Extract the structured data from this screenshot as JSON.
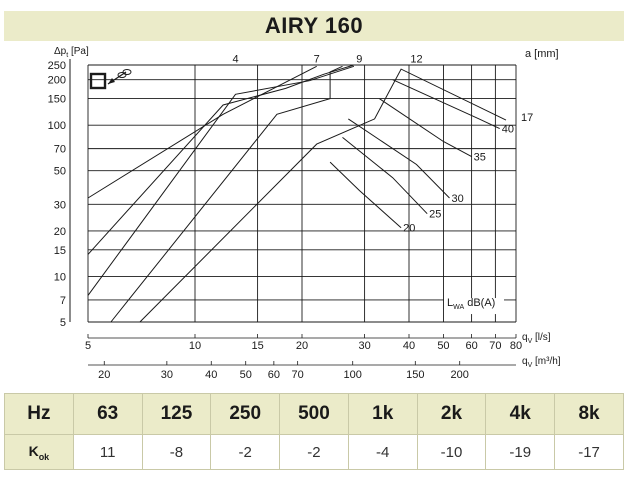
{
  "page_title": "AIRY 160",
  "chart_data": {
    "type": "line",
    "title": "AIRY 160",
    "ylabel": "Δpt [Pa]",
    "ylabel_sub": "t",
    "y_unit": "[Pa]",
    "y_scale": "log",
    "ylim": [
      5,
      250
    ],
    "y_ticks": [
      5,
      7,
      10,
      15,
      20,
      30,
      50,
      70,
      100,
      150,
      200,
      250
    ],
    "x_scale": "log",
    "xlim": [
      5,
      80
    ],
    "x_axis_ls": {
      "label_main": "q",
      "label_sub": "V",
      "unit": "[l/s]",
      "ticks": [
        5,
        10,
        15,
        20,
        30,
        40,
        50,
        60,
        70,
        80
      ]
    },
    "x_axis_m3h": {
      "label_main": "q",
      "label_sub": "V",
      "unit": "[m³/h]",
      "ticks": [
        20,
        30,
        40,
        50,
        60,
        70,
        100,
        150,
        200
      ]
    },
    "damper_axis_label": "a [mm]",
    "damper_curves": [
      {
        "name": "4",
        "label_pos": [
          13,
          260
        ],
        "points": [
          [
            5,
            33
          ],
          [
            12,
            118
          ],
          [
            22,
            245
          ]
        ]
      },
      {
        "name": "7",
        "label_pos": [
          22,
          260
        ],
        "points": [
          [
            5,
            14
          ],
          [
            12,
            136
          ],
          [
            18,
            175
          ],
          [
            23,
            217
          ],
          [
            28,
            250
          ]
        ]
      },
      {
        "name": "9",
        "label_pos": [
          29,
          260
        ],
        "points": [
          [
            5,
            7.5
          ],
          [
            13,
            160
          ],
          [
            21,
            197
          ],
          [
            28,
            245
          ]
        ]
      },
      {
        "name": "12",
        "label_pos": [
          42,
          260
        ],
        "points": [
          [
            5.8,
            5
          ],
          [
            17,
            118
          ],
          [
            24,
            150
          ],
          [
            24,
            225
          ],
          [
            26,
            245
          ]
        ]
      },
      {
        "name": "17",
        "label_pos": [
          86,
          107
        ],
        "points": [
          [
            7,
            5
          ],
          [
            22,
            75
          ],
          [
            32,
            110
          ],
          [
            38,
            235
          ],
          [
            75,
            108
          ]
        ]
      }
    ],
    "sound_curves": [
      {
        "name": "20",
        "points": [
          [
            24,
            57
          ],
          [
            29,
            37
          ],
          [
            38,
            21
          ]
        ]
      },
      {
        "name": "25",
        "points": [
          [
            26,
            83
          ],
          [
            36,
            45
          ],
          [
            45,
            26
          ]
        ]
      },
      {
        "name": "30",
        "points": [
          [
            27,
            110
          ],
          [
            42,
            55
          ],
          [
            52,
            33
          ]
        ]
      },
      {
        "name": "35",
        "points": [
          [
            33,
            150
          ],
          [
            50,
            78
          ],
          [
            60,
            62
          ]
        ]
      },
      {
        "name": "40",
        "points": [
          [
            36,
            200
          ],
          [
            63,
            110
          ],
          [
            72,
            95
          ]
        ]
      }
    ],
    "series_label": "L WA dB(A)",
    "series_label_main": "L",
    "series_label_sub": "WA",
    "series_label_unit": "dB(A)",
    "grid": true
  },
  "octave_table": {
    "header_label": "Hz",
    "bands": [
      "63",
      "125",
      "250",
      "500",
      "1k",
      "2k",
      "4k",
      "8k"
    ],
    "row_label_main": "K",
    "row_label_sub": "ok",
    "values": [
      "11",
      "-8",
      "-2",
      "-2",
      "-4",
      "-10",
      "-19",
      "-17"
    ]
  },
  "colors": {
    "header_bg": "#ebebc9",
    "grid": "#1a1a1a",
    "border": "#c9c9a7"
  }
}
